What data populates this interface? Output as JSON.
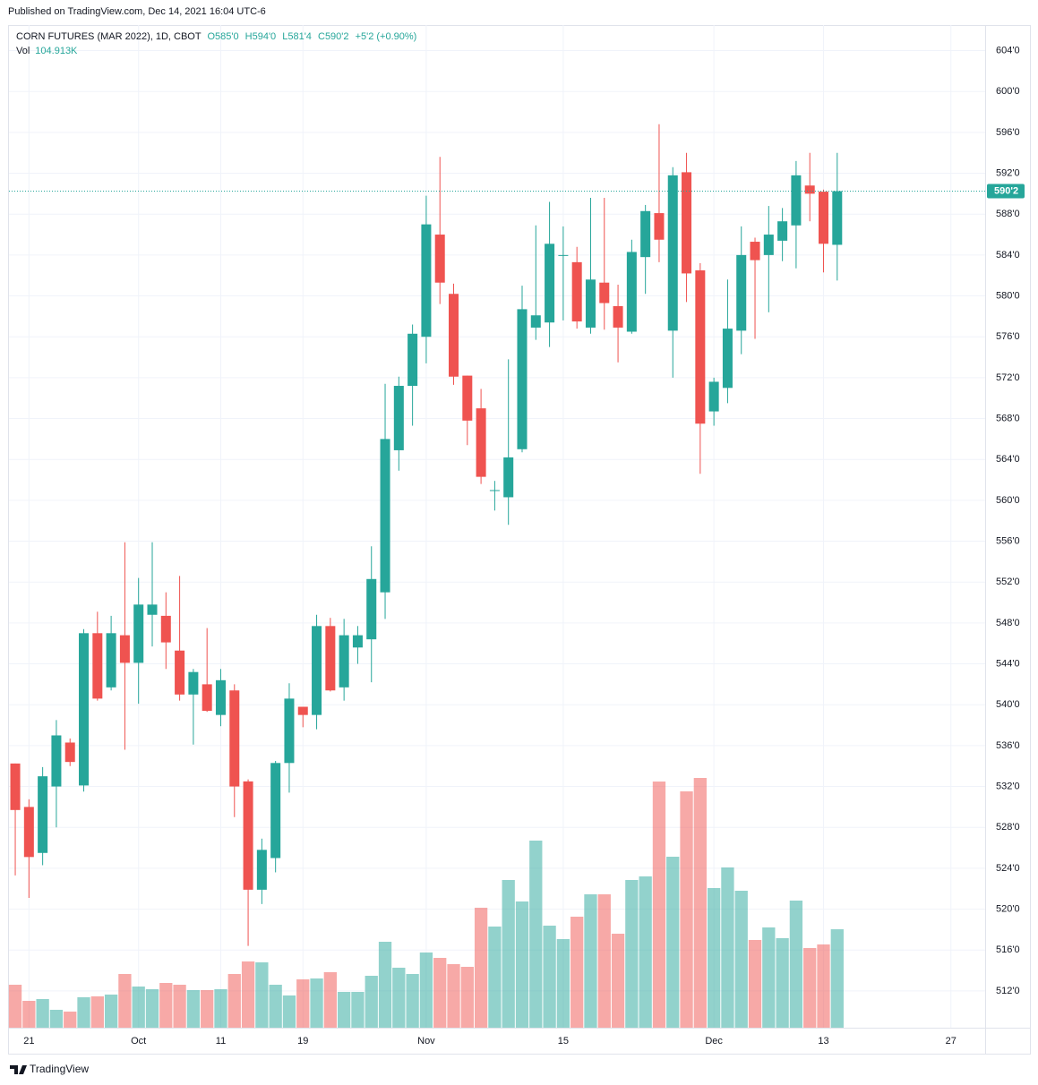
{
  "published": "Published on TradingView.com, Dec 14, 2021 16:04 UTC-6",
  "footer": "TradingView",
  "chart_data": {
    "type": "candlestick",
    "title": "CORN FUTURES (MAR 2022), 1D, CBOT",
    "legend": {
      "open": "O585'0",
      "high": "H594'0",
      "low": "L581'4",
      "close": "C590'2",
      "change": "+5'2 (+0.90%)",
      "volume_name": "Vol",
      "volume_value": "104.913K"
    },
    "up_color": "#26a69a",
    "down_color": "#ef5350",
    "open": [
      534.25,
      530.0,
      525.5,
      532.0,
      536.3,
      532.1,
      547.0,
      541.7,
      546.8,
      544.1,
      548.8,
      548.7,
      545.3,
      541.0,
      542.0,
      539.0,
      541.4,
      532.5,
      521.9,
      525.0,
      534.3,
      539.8,
      539.0,
      547.7,
      541.7,
      545.6,
      546.4,
      551.0,
      564.9,
      571.2,
      576.0,
      586.0,
      580.2,
      572.2,
      569.0,
      561.0,
      560.3,
      565.0,
      576.9,
      577.4,
      584.0,
      583.3,
      576.9,
      581.3,
      579.0,
      576.5,
      583.8,
      588.1,
      576.6,
      592.1,
      582.5,
      568.7,
      571.0,
      576.6,
      585.3,
      584.0,
      585.4,
      586.9,
      590.8,
      590.2,
      585.0
    ],
    "high": [
      534.25,
      530.75,
      533.9,
      538.5,
      536.7,
      547.4,
      549.1,
      548.7,
      555.9,
      552.4,
      555.9,
      551.0,
      552.6,
      543.5,
      547.5,
      543.5,
      542.0,
      532.7,
      526.9,
      534.5,
      542.1,
      539.8,
      548.8,
      548.5,
      548.4,
      547.7,
      555.5,
      571.4,
      572.1,
      577.2,
      589.8,
      593.6,
      581.2,
      572.2,
      570.9,
      561.9,
      573.8,
      581.0,
      586.9,
      589.2,
      586.8,
      584.8,
      589.6,
      589.6,
      581.1,
      585.5,
      588.9,
      596.8,
      592.6,
      594.0,
      583.2,
      572.0,
      581.6,
      586.8,
      585.7,
      588.8,
      588.6,
      593.2,
      594.0,
      590.4,
      594.0
    ],
    "low": [
      523.3,
      521.1,
      524.3,
      528.0,
      534.0,
      531.5,
      540.4,
      541.4,
      535.6,
      540.1,
      545.7,
      543.5,
      540.4,
      536.1,
      539.3,
      537.9,
      529.0,
      516.4,
      520.5,
      523.6,
      531.4,
      537.8,
      537.6,
      541.3,
      540.4,
      544.0,
      542.2,
      548.4,
      562.9,
      567.3,
      573.4,
      579.2,
      571.3,
      565.4,
      561.6,
      559.0,
      557.6,
      564.7,
      575.7,
      575.0,
      577.6,
      576.8,
      576.3,
      576.7,
      573.5,
      576.3,
      580.2,
      583.3,
      572.0,
      579.4,
      562.6,
      567.3,
      569.5,
      574.3,
      575.8,
      578.4,
      583.4,
      582.7,
      587.3,
      582.3,
      581.5
    ],
    "close": [
      529.7,
      525.1,
      533.0,
      537.0,
      534.4,
      547.0,
      540.6,
      547.0,
      544.1,
      549.8,
      549.8,
      546.1,
      541.0,
      543.2,
      539.4,
      542.4,
      532.0,
      521.9,
      525.8,
      534.3,
      540.6,
      539.0,
      547.7,
      541.4,
      546.8,
      546.8,
      552.3,
      566.0,
      571.2,
      576.3,
      587.0,
      581.3,
      572.1,
      567.8,
      562.3,
      561.0,
      564.2,
      578.7,
      578.1,
      585.1,
      584.0,
      577.5,
      581.6,
      579.3,
      576.9,
      584.3,
      588.3,
      585.5,
      591.8,
      582.2,
      567.5,
      571.6,
      576.8,
      584.0,
      583.5,
      586.0,
      587.3,
      591.8,
      590.0,
      585.1,
      590.25
    ],
    "volume": [
      45790,
      28620,
      30530,
      19080,
      17170,
      32440,
      33390,
      35300,
      57240,
      43880,
      41020,
      47700,
      45790,
      40070,
      40070,
      41020,
      57240,
      70600,
      69640,
      45790,
      34340,
      51520,
      52470,
      59150,
      38160,
      38160,
      55330,
      91580,
      63920,
      57240,
      80140,
      74410,
      67730,
      64870,
      127840,
      107800,
      157410,
      134510,
      199390,
      108760,
      94450,
      118300,
      142150,
      142150,
      100170,
      157410,
      161230,
      262350,
      182210,
      251860,
      266170,
      148820,
      170770,
      145960,
      93490,
      106850,
      95400,
      135470,
      84910,
      88720,
      104913
    ],
    "current_price": {
      "value": 590.25,
      "label": "590'2"
    },
    "xlim": [
      -0.46,
      70.8
    ],
    "xticks": [
      {
        "value": 1,
        "label": "21"
      },
      {
        "value": 9,
        "label": "Oct"
      },
      {
        "value": 15,
        "label": "11"
      },
      {
        "value": 21,
        "label": "19"
      },
      {
        "value": 30,
        "label": "Nov"
      },
      {
        "value": 40,
        "label": "15"
      },
      {
        "value": 51,
        "label": "Dec"
      },
      {
        "value": 59,
        "label": "13"
      },
      {
        "value": 68.3,
        "label": "27"
      }
    ],
    "ylim": [
      508.4,
      606.5
    ],
    "yticks": [
      {
        "value": 604,
        "label": "604'0"
      },
      {
        "value": 600,
        "label": "600'0"
      },
      {
        "value": 596,
        "label": "596'0"
      },
      {
        "value": 592,
        "label": "592'0"
      },
      {
        "value": 588,
        "label": "588'0"
      },
      {
        "value": 584,
        "label": "584'0"
      },
      {
        "value": 580,
        "label": "580'0"
      },
      {
        "value": 576,
        "label": "576'0"
      },
      {
        "value": 572,
        "label": "572'0"
      },
      {
        "value": 568,
        "label": "568'0"
      },
      {
        "value": 564,
        "label": "564'0"
      },
      {
        "value": 560,
        "label": "560'0"
      },
      {
        "value": 556,
        "label": "556'0"
      },
      {
        "value": 552,
        "label": "552'0"
      },
      {
        "value": 548,
        "label": "548'0"
      },
      {
        "value": 544,
        "label": "544'0"
      },
      {
        "value": 540,
        "label": "540'0"
      },
      {
        "value": 536,
        "label": "536'0"
      },
      {
        "value": 532,
        "label": "532'0"
      },
      {
        "value": 528,
        "label": "528'0"
      },
      {
        "value": 524,
        "label": "524'0"
      },
      {
        "value": 520,
        "label": "520'0"
      },
      {
        "value": 516,
        "label": "516'0"
      },
      {
        "value": 512,
        "label": "512'0"
      }
    ],
    "grid": true
  }
}
